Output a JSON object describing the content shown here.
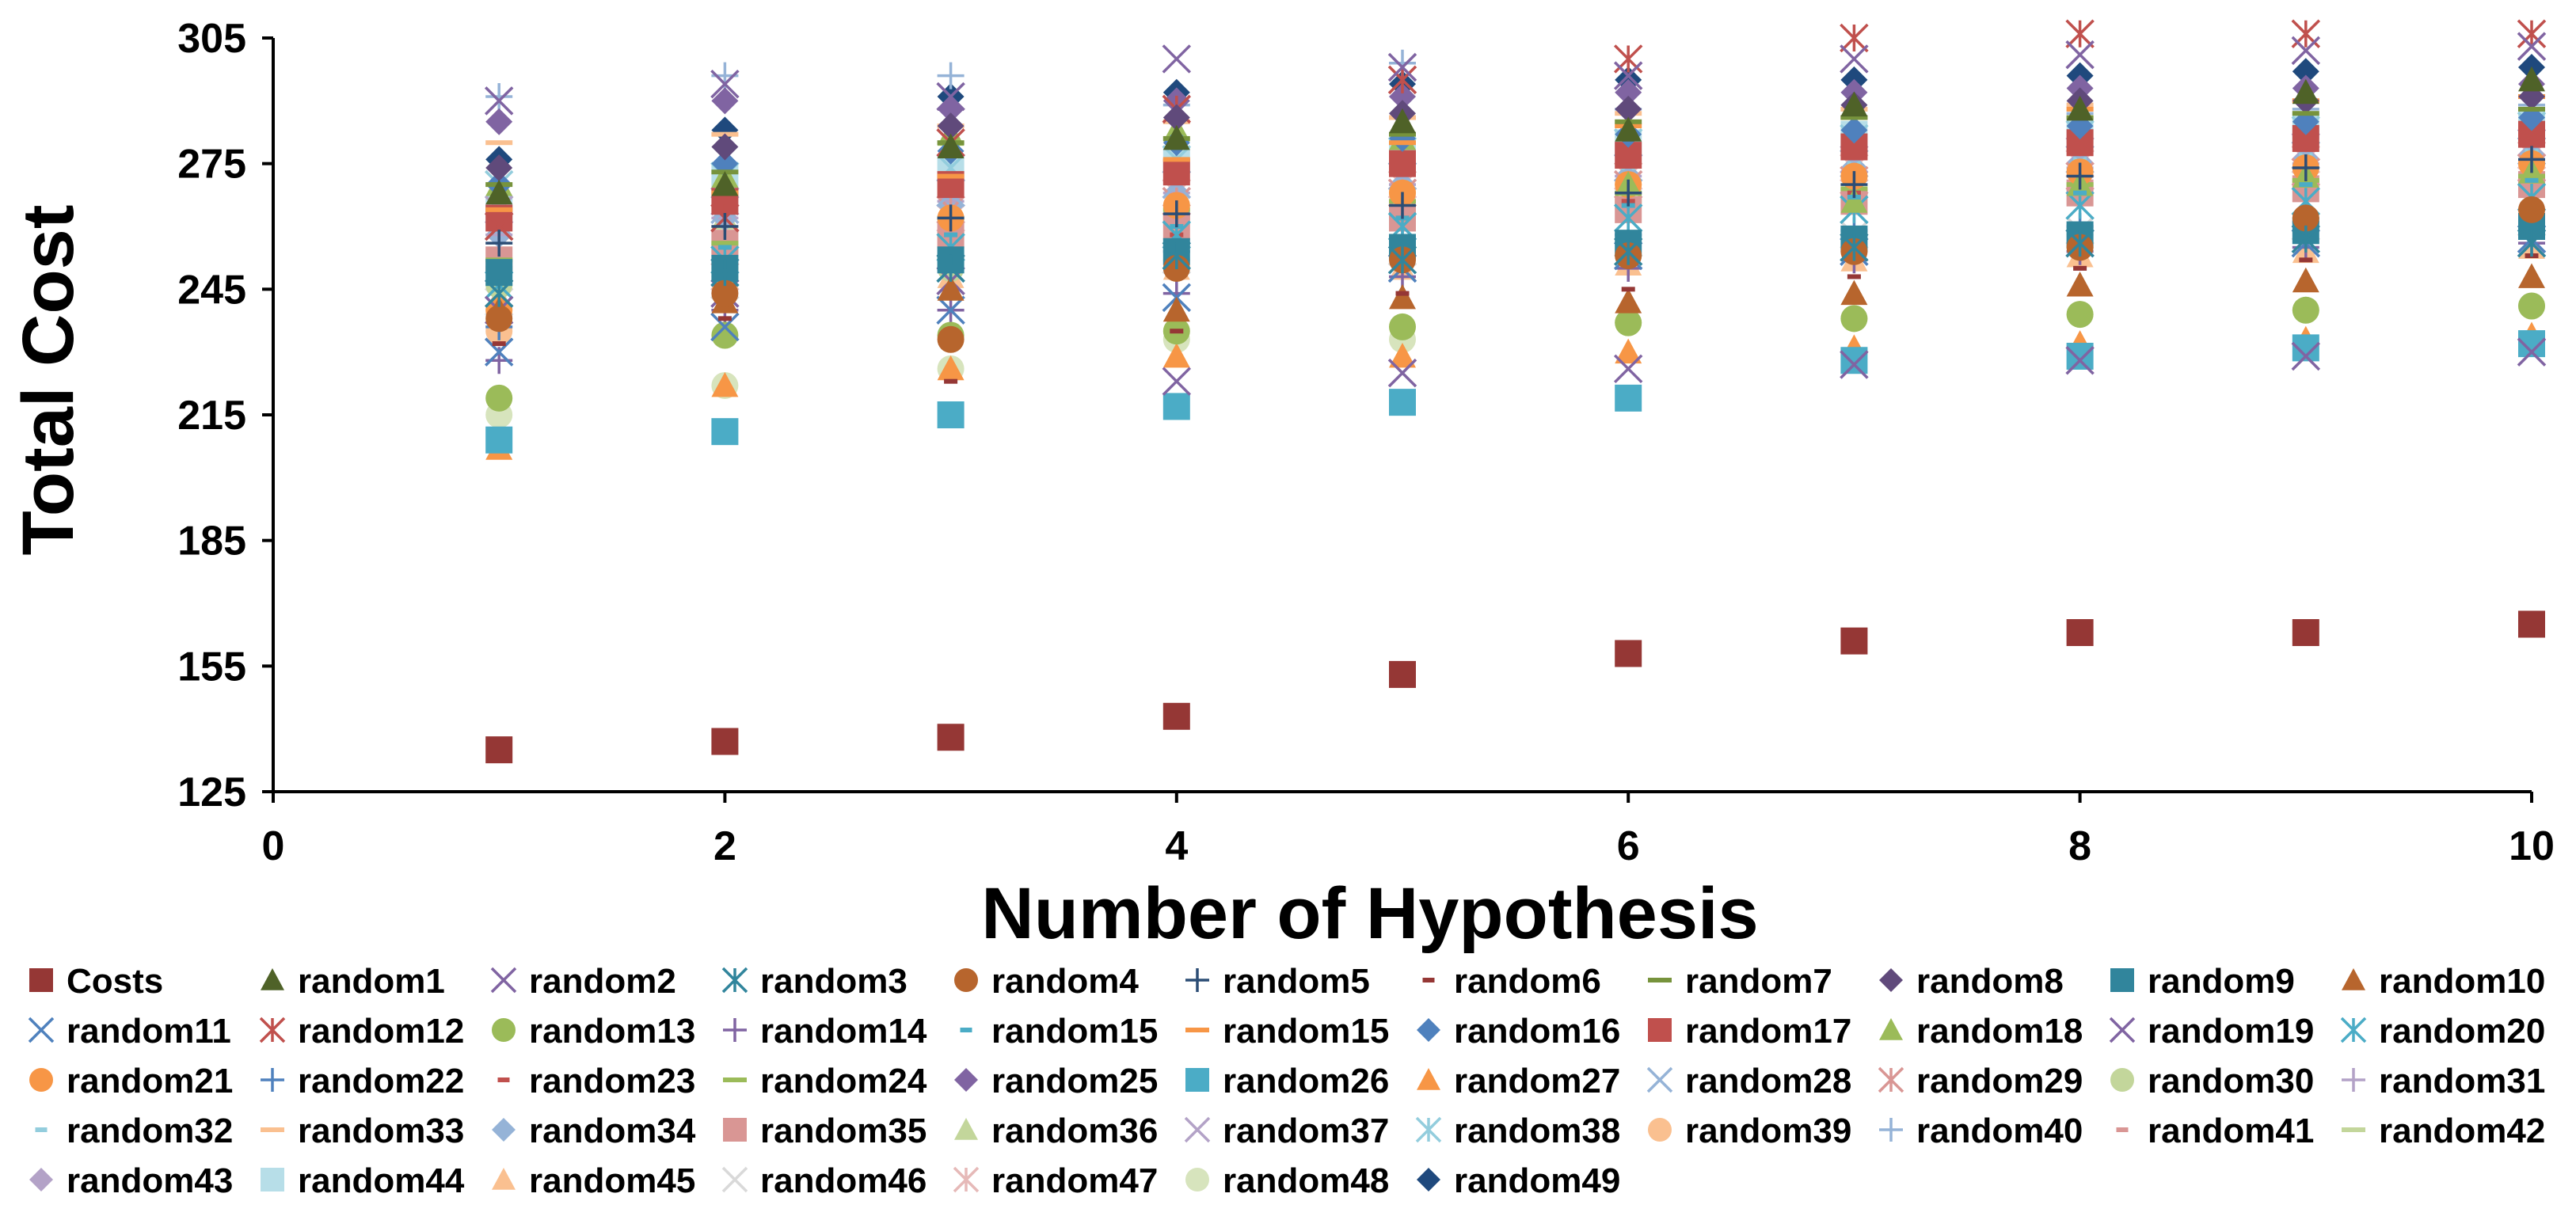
{
  "chart_data": {
    "type": "scatter",
    "title": "",
    "xlabel": "Number of Hypothesis",
    "ylabel": "Total Cost",
    "xlim": [
      0,
      10
    ],
    "ylim": [
      125,
      305
    ],
    "x_ticks": [
      "0",
      "2",
      "4",
      "6",
      "8",
      "10"
    ],
    "y_ticks": [
      "125",
      "155",
      "185",
      "215",
      "245",
      "275",
      "305"
    ],
    "grid": false,
    "legend_position": "bottom",
    "x": [
      1,
      2,
      3,
      4,
      5,
      6,
      7,
      8,
      9,
      10
    ],
    "series": [
      {
        "name": "Costs",
        "marker": "square",
        "color": "#953735",
        "values": [
          135,
          137,
          138,
          143,
          153,
          158,
          161,
          163,
          163,
          165
        ]
      },
      {
        "name": "random1",
        "marker": "triangle",
        "color": "#4F6228",
        "values": [
          268,
          270,
          279,
          281,
          285,
          283,
          289,
          288,
          292,
          295
        ]
      },
      {
        "name": "random2",
        "marker": "x",
        "color": "#8064A2",
        "values": [
          290,
          294,
          291,
          300,
          298,
          296,
          300,
          301,
          302,
          303
        ]
      },
      {
        "name": "random3",
        "marker": "asterisk",
        "color": "#31859C",
        "values": [
          244,
          249,
          250,
          253,
          252,
          254,
          255,
          256,
          257,
          256
        ]
      },
      {
        "name": "random4",
        "marker": "circle",
        "color": "#B7652D",
        "values": [
          238,
          244,
          233,
          250,
          252,
          253,
          254,
          255,
          262,
          264
        ]
      },
      {
        "name": "random5",
        "marker": "plus",
        "color": "#2C4D75",
        "values": [
          256,
          260,
          262,
          263,
          265,
          268,
          270,
          272,
          274,
          276
        ]
      },
      {
        "name": "random6",
        "marker": "dash",
        "color": "#953735",
        "values": [
          232,
          238,
          223,
          235,
          244,
          245,
          248,
          250,
          252,
          253
        ]
      },
      {
        "name": "random7",
        "marker": "hline",
        "color": "#77933C",
        "values": [
          270,
          273,
          280,
          281,
          282,
          285,
          286,
          286,
          287,
          288
        ]
      },
      {
        "name": "random8",
        "marker": "diamond",
        "color": "#604A7B",
        "values": [
          274,
          279,
          284,
          286,
          287,
          288,
          289,
          290,
          290,
          291
        ]
      },
      {
        "name": "random9",
        "marker": "square",
        "color": "#31859C",
        "values": [
          249,
          250,
          252,
          254,
          255,
          256,
          257,
          258,
          259,
          260
        ]
      },
      {
        "name": "random10",
        "marker": "triangle",
        "color": "#B7652D",
        "values": [
          240,
          242,
          245,
          240,
          243,
          242,
          244,
          246,
          247,
          248
        ]
      },
      {
        "name": "random11",
        "marker": "x",
        "color": "#4F81BD",
        "values": [
          230,
          236,
          240,
          243,
          250,
          253,
          254,
          256,
          256,
          257
        ]
      },
      {
        "name": "random12",
        "marker": "asterisk",
        "color": "#C0504D",
        "values": [
          260,
          262,
          280,
          288,
          295,
          300,
          305,
          306,
          306,
          306
        ]
      },
      {
        "name": "random13",
        "marker": "circle",
        "color": "#9BBB59",
        "values": [
          219,
          234,
          234,
          235,
          236,
          237,
          238,
          239,
          240,
          241
        ]
      },
      {
        "name": "random14",
        "marker": "plus",
        "color": "#8064A2",
        "values": [
          228,
          240,
          240,
          244,
          248,
          250,
          252,
          254,
          255,
          256
        ]
      },
      {
        "name": "random15",
        "marker": "dash",
        "color": "#4BACC6",
        "values": [
          250,
          255,
          258,
          260,
          262,
          265,
          267,
          268,
          270,
          271
        ]
      },
      {
        "name": "random15",
        "marker": "hline",
        "color": "#F79646",
        "values": [
          264,
          268,
          272,
          276,
          280,
          284,
          286,
          288,
          290,
          291
        ]
      },
      {
        "name": "random16",
        "marker": "diamond",
        "color": "#4F81BD",
        "values": [
          270,
          275,
          278,
          280,
          281,
          282,
          283,
          284,
          285,
          286
        ]
      },
      {
        "name": "random17",
        "marker": "square",
        "color": "#C0504D",
        "values": [
          262,
          266,
          270,
          273,
          275,
          277,
          279,
          280,
          281,
          282
        ]
      },
      {
        "name": "random18",
        "marker": "triangle",
        "color": "#9BBB59",
        "values": [
          270,
          272,
          282,
          283,
          281,
          270,
          266,
          270,
          272,
          273
        ]
      },
      {
        "name": "random19",
        "marker": "x",
        "color": "#8064A2",
        "values": [
          240,
          244,
          247,
          223,
          225,
          226,
          227,
          228,
          229,
          230
        ]
      },
      {
        "name": "random20",
        "marker": "asterisk",
        "color": "#4BACC6",
        "values": [
          246,
          252,
          255,
          258,
          260,
          262,
          264,
          265,
          266,
          267
        ]
      },
      {
        "name": "random21",
        "marker": "circle",
        "color": "#F79646",
        "values": [
          240,
          250,
          262,
          265,
          268,
          270,
          272,
          273,
          274,
          275
        ]
      },
      {
        "name": "random22",
        "marker": "plus",
        "color": "#4F81BD",
        "values": [
          236,
          246,
          250,
          254,
          256,
          258,
          259,
          260,
          261,
          262
        ]
      },
      {
        "name": "random23",
        "marker": "dash",
        "color": "#C0504D",
        "values": [
          242,
          246,
          252,
          258,
          262,
          266,
          268,
          270,
          271,
          272
        ]
      },
      {
        "name": "random24",
        "marker": "hline",
        "color": "#9BBB59",
        "values": [
          252,
          256,
          262,
          264,
          266,
          268,
          269,
          270,
          271,
          272
        ]
      },
      {
        "name": "random25",
        "marker": "diamond",
        "color": "#8064A2",
        "values": [
          285,
          290,
          288,
          290,
          291,
          292,
          292,
          293,
          293,
          294
        ]
      },
      {
        "name": "random26",
        "marker": "square",
        "color": "#4BACC6",
        "values": [
          209,
          211,
          215,
          217,
          218,
          219,
          228,
          229,
          231,
          232
        ]
      },
      {
        "name": "random27",
        "marker": "triangle",
        "color": "#F79646",
        "values": [
          207,
          222,
          226,
          229,
          229,
          230,
          231,
          232,
          233,
          234
        ]
      },
      {
        "name": "random28",
        "marker": "x",
        "color": "#95B3D7",
        "values": [
          260,
          264,
          268,
          270,
          272,
          274,
          275,
          276,
          277,
          278
        ]
      },
      {
        "name": "random29",
        "marker": "asterisk",
        "color": "#D99694",
        "values": [
          260,
          262,
          264,
          266,
          268,
          270,
          271,
          272,
          273,
          274
        ]
      },
      {
        "name": "random30",
        "marker": "circle",
        "color": "#C3D69B",
        "values": [
          246,
          248,
          250,
          252,
          254,
          256,
          257,
          258,
          259,
          260
        ]
      },
      {
        "name": "random31",
        "marker": "plus",
        "color": "#B3A2C7",
        "values": [
          258,
          262,
          266,
          268,
          270,
          272,
          273,
          274,
          275,
          276
        ]
      },
      {
        "name": "random32",
        "marker": "dash",
        "color": "#93CDDD",
        "values": [
          265,
          268,
          270,
          272,
          273,
          274,
          275,
          276,
          277,
          278
        ]
      },
      {
        "name": "random33",
        "marker": "hline",
        "color": "#FAC090",
        "values": [
          280,
          282,
          284,
          285,
          286,
          287,
          288,
          289,
          290,
          291
        ]
      },
      {
        "name": "random34",
        "marker": "diamond",
        "color": "#95B3D7",
        "values": [
          258,
          262,
          265,
          268,
          270,
          272,
          274,
          275,
          276,
          277
        ]
      },
      {
        "name": "random35",
        "marker": "square",
        "color": "#D99694",
        "values": [
          252,
          256,
          258,
          260,
          262,
          264,
          266,
          268,
          269,
          270
        ]
      },
      {
        "name": "random36",
        "marker": "triangle",
        "color": "#C3D69B",
        "values": [
          260,
          262,
          264,
          265,
          266,
          267,
          268,
          269,
          270,
          271
        ]
      },
      {
        "name": "random37",
        "marker": "x",
        "color": "#B3A2C7",
        "values": [
          264,
          266,
          268,
          270,
          272,
          274,
          276,
          278,
          279,
          280
        ]
      },
      {
        "name": "random38",
        "marker": "asterisk",
        "color": "#93CDDD",
        "values": [
          270,
          272,
          274,
          276,
          278,
          280,
          281,
          282,
          283,
          284
        ]
      },
      {
        "name": "random39",
        "marker": "circle",
        "color": "#FAC090",
        "values": [
          235,
          255,
          258,
          262,
          268,
          270,
          272,
          273,
          274,
          275
        ]
      },
      {
        "name": "random40",
        "marker": "plus",
        "color": "#95B3D7",
        "values": [
          291,
          296,
          296,
          289,
          299,
          288,
          286,
          287,
          288,
          289
        ]
      },
      {
        "name": "random41",
        "marker": "dash",
        "color": "#D99694",
        "values": [
          248,
          252,
          256,
          260,
          264,
          268,
          270,
          272,
          273,
          274
        ]
      },
      {
        "name": "random42",
        "marker": "hline",
        "color": "#C3D69B",
        "values": [
          250,
          254,
          258,
          262,
          264,
          266,
          268,
          270,
          271,
          272
        ]
      },
      {
        "name": "random43",
        "marker": "diamond",
        "color": "#B3A2C7",
        "values": [
          258,
          262,
          266,
          268,
          270,
          272,
          274,
          275,
          276,
          277
        ]
      },
      {
        "name": "random44",
        "marker": "square",
        "color": "#B7DEE8",
        "values": [
          264,
          272,
          274,
          276,
          278,
          280,
          282,
          283,
          284,
          285
        ]
      },
      {
        "name": "random45",
        "marker": "triangle",
        "color": "#FAC090",
        "values": [
          243,
          248,
          248,
          250,
          250,
          251,
          252,
          253,
          254,
          255
        ]
      },
      {
        "name": "random46",
        "marker": "x",
        "color": "#D9D9D9",
        "values": [
          242,
          246,
          250,
          252,
          254,
          256,
          258,
          259,
          260,
          261
        ]
      },
      {
        "name": "random47",
        "marker": "asterisk",
        "color": "#E6B9B8",
        "values": [
          244,
          248,
          262,
          268,
          270,
          272,
          274,
          275,
          276,
          277
        ]
      },
      {
        "name": "random48",
        "marker": "circle",
        "color": "#D7E4BD",
        "values": [
          215,
          222,
          226,
          233,
          233,
          237,
          238,
          239,
          240,
          241
        ]
      },
      {
        "name": "random49",
        "marker": "diamond",
        "color": "#1F497D",
        "values": [
          276,
          283,
          291,
          292,
          294,
          295,
          295,
          296,
          297,
          298
        ]
      }
    ]
  }
}
